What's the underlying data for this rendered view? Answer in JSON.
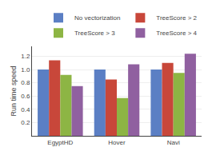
{
  "chart_data": {
    "type": "bar",
    "categories": [
      "EgyptHD",
      "Hover",
      "Navi"
    ],
    "series": [
      {
        "name": "No vectorization",
        "color": "#5b7fc4",
        "values": [
          1.0,
          1.0,
          1.0
        ]
      },
      {
        "name": "TreeScore > 2",
        "color": "#c8473a",
        "values": [
          1.14,
          0.85,
          1.1
        ]
      },
      {
        "name": "TreeScore > 3",
        "color": "#8db544",
        "values": [
          0.92,
          0.57,
          0.95
        ]
      },
      {
        "name": "TreeScore > 4",
        "color": "#9060a0",
        "values": [
          0.75,
          1.08,
          1.24
        ]
      }
    ],
    "ylabel": "Run time speed",
    "ylim": [
      0,
      1.35
    ],
    "yticks": [
      0.2,
      0.4,
      0.6,
      0.8,
      {
        "value": 1.0,
        "label": "1.0"
      },
      1.2
    ],
    "grid": true,
    "legend": "upper right"
  }
}
